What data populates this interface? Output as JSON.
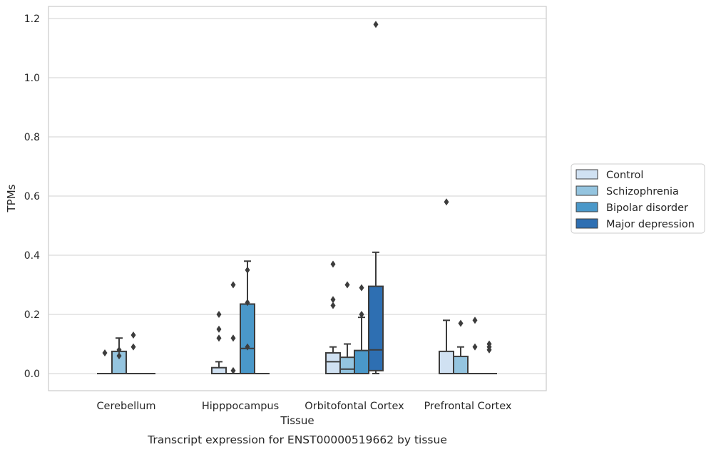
{
  "chart_data": {
    "type": "box",
    "title": "",
    "caption": "Transcript expression for ENST00000519662 by tissue",
    "xlabel": "Tissue",
    "ylabel": "TPMs",
    "ylim": [
      -0.055,
      1.24
    ],
    "yticks": [
      0.0,
      0.2,
      0.4,
      0.6,
      0.8,
      1.0,
      1.2
    ],
    "ytick_labels": [
      "0.0",
      "0.2",
      "0.4",
      "0.6",
      "0.8",
      "1.0",
      "1.2"
    ],
    "grid": "horizontal",
    "legend_position": "right",
    "categories": [
      "Cerebellum",
      "Hipppocampus",
      "Orbitofontal Cortex",
      "Prefrontal Cortex"
    ],
    "series": [
      {
        "name": "Control",
        "color": "#d0e1f2",
        "boxes": [
          {
            "q1": 0,
            "median": 0,
            "q3": 0,
            "whisker_low": 0,
            "whisker_high": 0,
            "fliers": [
              0.07
            ]
          },
          {
            "q1": 0,
            "median": 0,
            "q3": 0.02,
            "whisker_low": 0,
            "whisker_high": 0.04,
            "fliers": [
              0.12,
              0.15,
              0.2
            ]
          },
          {
            "q1": 0,
            "median": 0.04,
            "q3": 0.07,
            "whisker_low": 0,
            "whisker_high": 0.09,
            "fliers": [
              0.23,
              0.25,
              0.37
            ]
          },
          {
            "q1": 0,
            "median": 0,
            "q3": 0.075,
            "whisker_low": 0,
            "whisker_high": 0.18,
            "fliers": [
              0.58
            ]
          }
        ]
      },
      {
        "name": "Schizophrenia",
        "color": "#94c4df",
        "boxes": [
          {
            "q1": 0,
            "median": 0,
            "q3": 0.075,
            "whisker_low": 0,
            "whisker_high": 0.12,
            "fliers": [
              0.06,
              0.08
            ]
          },
          {
            "q1": 0,
            "median": 0,
            "q3": 0,
            "whisker_low": 0,
            "whisker_high": 0,
            "fliers": [
              0.01,
              0.12,
              0.3
            ]
          },
          {
            "q1": 0,
            "median": 0.015,
            "q3": 0.055,
            "whisker_low": 0,
            "whisker_high": 0.1,
            "fliers": [
              0.3
            ]
          },
          {
            "q1": 0,
            "median": 0,
            "q3": 0.058,
            "whisker_low": 0,
            "whisker_high": 0.09,
            "fliers": [
              0.17
            ]
          }
        ]
      },
      {
        "name": "Bipolar disorder",
        "color": "#4a98c9",
        "boxes": [
          {
            "q1": 0,
            "median": 0,
            "q3": 0,
            "whisker_low": 0,
            "whisker_high": 0,
            "fliers": [
              0.09,
              0.13
            ]
          },
          {
            "q1": 0,
            "median": 0.085,
            "q3": 0.235,
            "whisker_low": 0,
            "whisker_high": 0.38,
            "fliers": [
              0.09,
              0.24,
              0.35
            ]
          },
          {
            "q1": 0,
            "median": 0,
            "q3": 0.078,
            "whisker_low": 0,
            "whisker_high": 0.19,
            "fliers": [
              0.2,
              0.29
            ]
          },
          {
            "q1": 0,
            "median": 0,
            "q3": 0,
            "whisker_low": 0,
            "whisker_high": 0,
            "fliers": [
              0.09,
              0.18
            ]
          }
        ]
      },
      {
        "name": "Major depression",
        "color": "#2e6fb2",
        "boxes": [
          {
            "q1": 0,
            "median": 0,
            "q3": 0,
            "whisker_low": 0,
            "whisker_high": 0,
            "fliers": []
          },
          {
            "q1": 0,
            "median": 0,
            "q3": 0,
            "whisker_low": 0,
            "whisker_high": 0,
            "fliers": []
          },
          {
            "q1": 0.01,
            "median": 0.08,
            "q3": 0.295,
            "whisker_low": 0,
            "whisker_high": 0.41,
            "fliers": [
              1.18
            ]
          },
          {
            "q1": 0,
            "median": 0,
            "q3": 0,
            "whisker_low": 0,
            "whisker_high": 0,
            "fliers": [
              0.08,
              0.09,
              0.1
            ]
          }
        ]
      }
    ]
  }
}
